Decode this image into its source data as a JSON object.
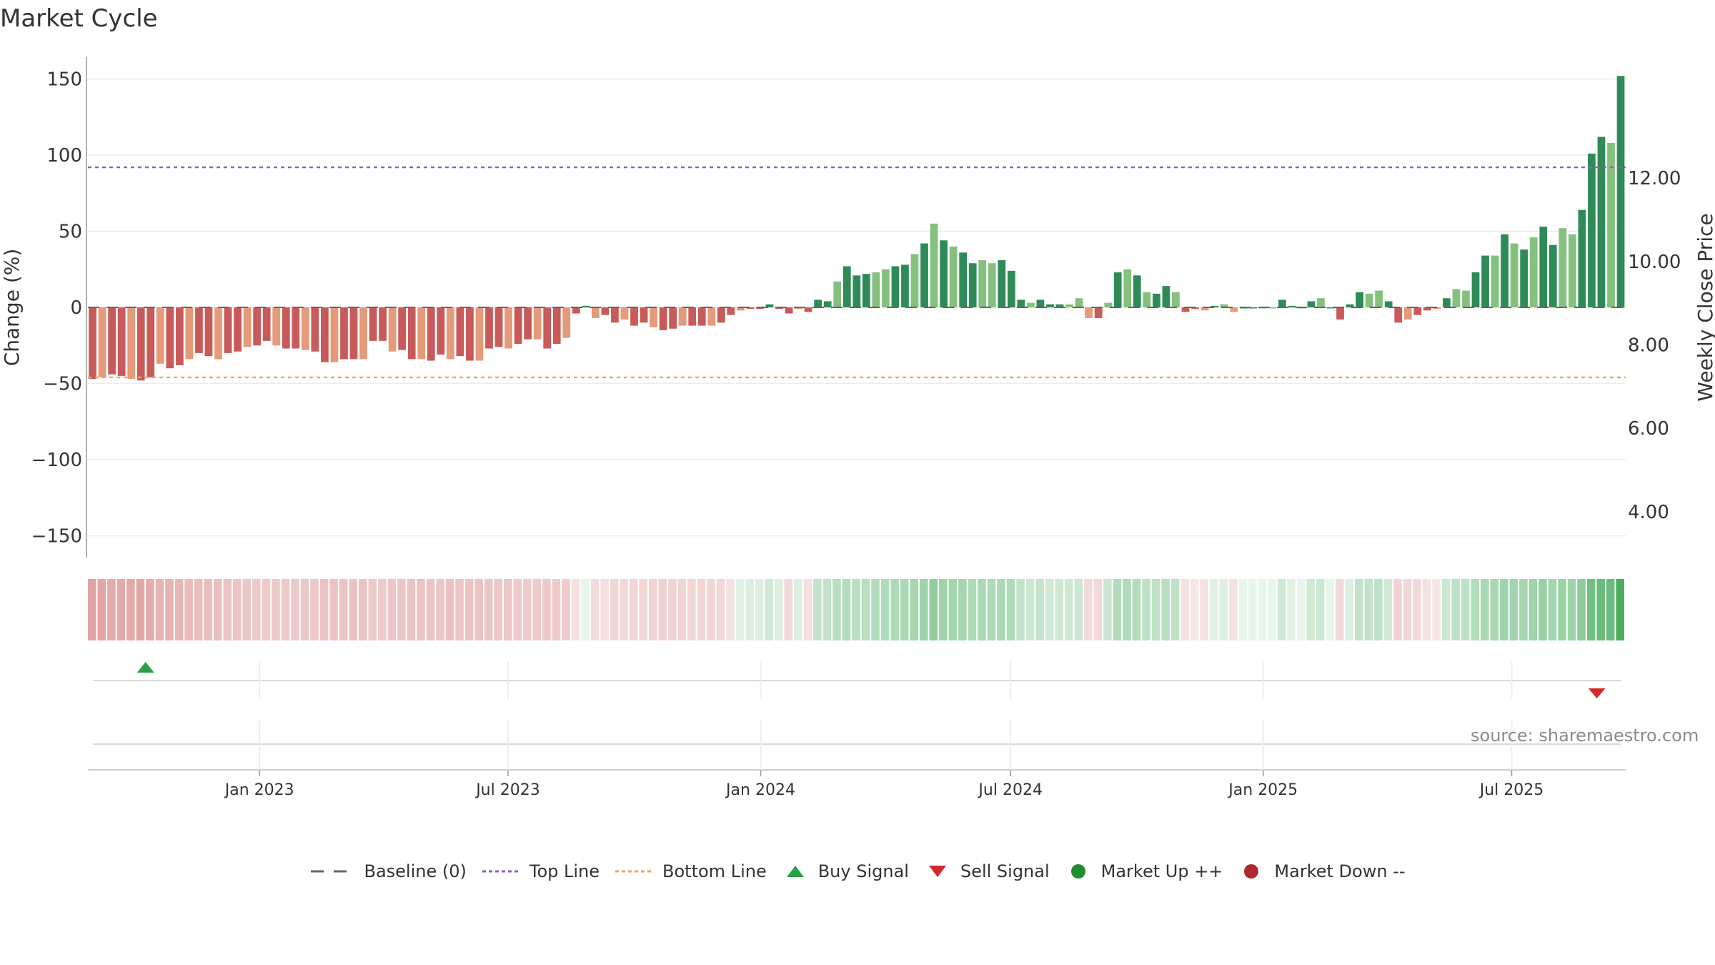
{
  "title": "Market Cycle",
  "source": "source: sharemaestro.com",
  "legend": [
    {
      "label": "Baseline (0)",
      "kind": "dash",
      "color": "#666666"
    },
    {
      "label": "Top Line",
      "kind": "dot",
      "color": "#8e5cc4"
    },
    {
      "label": "Bottom Line",
      "kind": "dot",
      "color": "#f0a35c"
    },
    {
      "label": "Buy Signal",
      "kind": "tri-up",
      "color": "#27a046"
    },
    {
      "label": "Sell Signal",
      "kind": "tri-down",
      "color": "#d22a2a"
    },
    {
      "label": "Market Up ++",
      "kind": "circle",
      "color": "#1e8c2c"
    },
    {
      "label": "Market Down --",
      "kind": "circle",
      "color": "#b0282c"
    }
  ],
  "chart_data": {
    "type": "bar",
    "title": "Market Cycle",
    "ylabel": "Change (%)",
    "y2label": "Weekly Close Price",
    "ylim": [
      -165,
      165
    ],
    "yticks": [
      150,
      100,
      50,
      0,
      -50,
      -100,
      -150
    ],
    "y2ticks": [
      "12.00",
      "10.00",
      "8.00",
      "6.00",
      "4.00"
    ],
    "y2tick_values": [
      12,
      10,
      8,
      6,
      4
    ],
    "y2lim": [
      2.9,
      14.9
    ],
    "x_start": "2022-08-29",
    "x_end": "2025-09-22",
    "xticks": [
      {
        "date": "2023-01-01",
        "label": "Jan 2023"
      },
      {
        "date": "2023-07-01",
        "label": "Jul 2023"
      },
      {
        "date": "2024-01-01",
        "label": "Jan 2024"
      },
      {
        "date": "2024-07-01",
        "label": "Jul 2024"
      },
      {
        "date": "2025-01-01",
        "label": "Jan 2025"
      },
      {
        "date": "2025-07-01",
        "label": "Jul 2025"
      }
    ],
    "top_line": 92,
    "bottom_line": -46,
    "baseline": 0,
    "grid": true,
    "legend_position": "bottom",
    "weekly_change": [
      -47,
      -46,
      -44,
      -45,
      -47,
      -48,
      -46,
      -37,
      -40,
      -38,
      -34,
      -30,
      -32,
      -34,
      -30,
      -29,
      -26,
      -25,
      -22,
      -25,
      -27,
      -27,
      -28,
      -29,
      -36,
      -36,
      -34,
      -34,
      -34,
      -22,
      -22,
      -29,
      -28,
      -34,
      -34,
      -35,
      -31,
      -34,
      -32,
      -35,
      -35,
      -27,
      -26,
      -27,
      -24,
      -21,
      -21,
      -27,
      -24,
      -20,
      -4,
      1,
      -7,
      -5,
      -10,
      -8,
      -12,
      -10,
      -13,
      -15,
      -14,
      -12,
      -12,
      -12,
      -12,
      -10,
      -5,
      -2,
      -1,
      -1,
      2,
      -1,
      -4,
      -1,
      -3,
      5,
      4,
      17,
      27,
      21,
      22,
      23,
      25,
      27,
      28,
      35,
      42,
      55,
      44,
      40,
      36,
      29,
      31,
      29,
      31,
      24,
      5,
      3,
      5,
      2,
      2,
      2,
      6,
      -7,
      -7,
      3,
      23,
      25,
      21,
      10,
      9,
      14,
      10,
      -3,
      -1,
      -2,
      1,
      2,
      -3,
      0,
      0,
      0,
      0,
      5,
      1,
      0,
      4,
      6,
      0,
      -8,
      2,
      10,
      9,
      11,
      4,
      -10,
      -8,
      -5,
      -2,
      -1,
      6,
      12,
      11,
      23,
      34,
      34,
      48,
      42,
      38,
      46,
      53,
      41,
      52,
      48,
      64,
      101,
      112,
      108,
      152
    ],
    "cycle_strength": [
      -0.45,
      -0.44,
      -0.42,
      -0.42,
      -0.43,
      -0.44,
      -0.42,
      -0.38,
      -0.38,
      -0.36,
      -0.34,
      -0.32,
      -0.32,
      -0.32,
      -0.3,
      -0.29,
      -0.28,
      -0.27,
      -0.26,
      -0.27,
      -0.27,
      -0.27,
      -0.28,
      -0.28,
      -0.3,
      -0.3,
      -0.3,
      -0.3,
      -0.3,
      -0.27,
      -0.27,
      -0.28,
      -0.28,
      -0.3,
      -0.3,
      -0.3,
      -0.29,
      -0.3,
      -0.29,
      -0.3,
      -0.3,
      -0.28,
      -0.28,
      -0.28,
      -0.27,
      -0.26,
      -0.26,
      -0.27,
      -0.26,
      -0.25,
      -0.15,
      0.1,
      -0.18,
      -0.16,
      -0.2,
      -0.18,
      -0.21,
      -0.2,
      -0.22,
      -0.23,
      -0.22,
      -0.21,
      -0.21,
      -0.21,
      -0.21,
      -0.2,
      -0.15,
      0.12,
      0.15,
      0.15,
      0.2,
      0.15,
      -0.18,
      0.15,
      -0.16,
      0.25,
      0.25,
      0.3,
      0.32,
      0.3,
      0.3,
      0.32,
      0.33,
      0.34,
      0.35,
      0.37,
      0.4,
      0.45,
      0.4,
      0.38,
      0.37,
      0.34,
      0.35,
      0.34,
      0.35,
      0.33,
      0.25,
      0.22,
      0.25,
      0.2,
      0.2,
      0.2,
      0.22,
      -0.18,
      -0.18,
      0.22,
      0.32,
      0.33,
      0.32,
      0.27,
      0.27,
      0.3,
      0.27,
      -0.15,
      -0.12,
      -0.14,
      0.12,
      0.15,
      -0.15,
      0.1,
      0.1,
      0.1,
      0.1,
      0.2,
      0.12,
      0.1,
      0.2,
      0.22,
      0.1,
      -0.18,
      0.15,
      0.25,
      0.25,
      0.27,
      0.2,
      -0.22,
      -0.2,
      -0.18,
      -0.15,
      -0.12,
      0.22,
      0.27,
      0.27,
      0.32,
      0.36,
      0.36,
      0.4,
      0.38,
      0.37,
      0.4,
      0.43,
      0.38,
      0.42,
      0.4,
      0.47,
      0.58,
      0.62,
      0.62,
      0.75
    ],
    "price_color_up": "#2e8b57",
    "price_color_up_light": "#86c07e",
    "price_color_down": "#c85a5a",
    "price_color_down_light": "#e59a79",
    "buy_signals": [
      {
        "date": "2022-10-10"
      }
    ],
    "sell_signals": [
      {
        "date": "2025-09-01"
      }
    ]
  }
}
